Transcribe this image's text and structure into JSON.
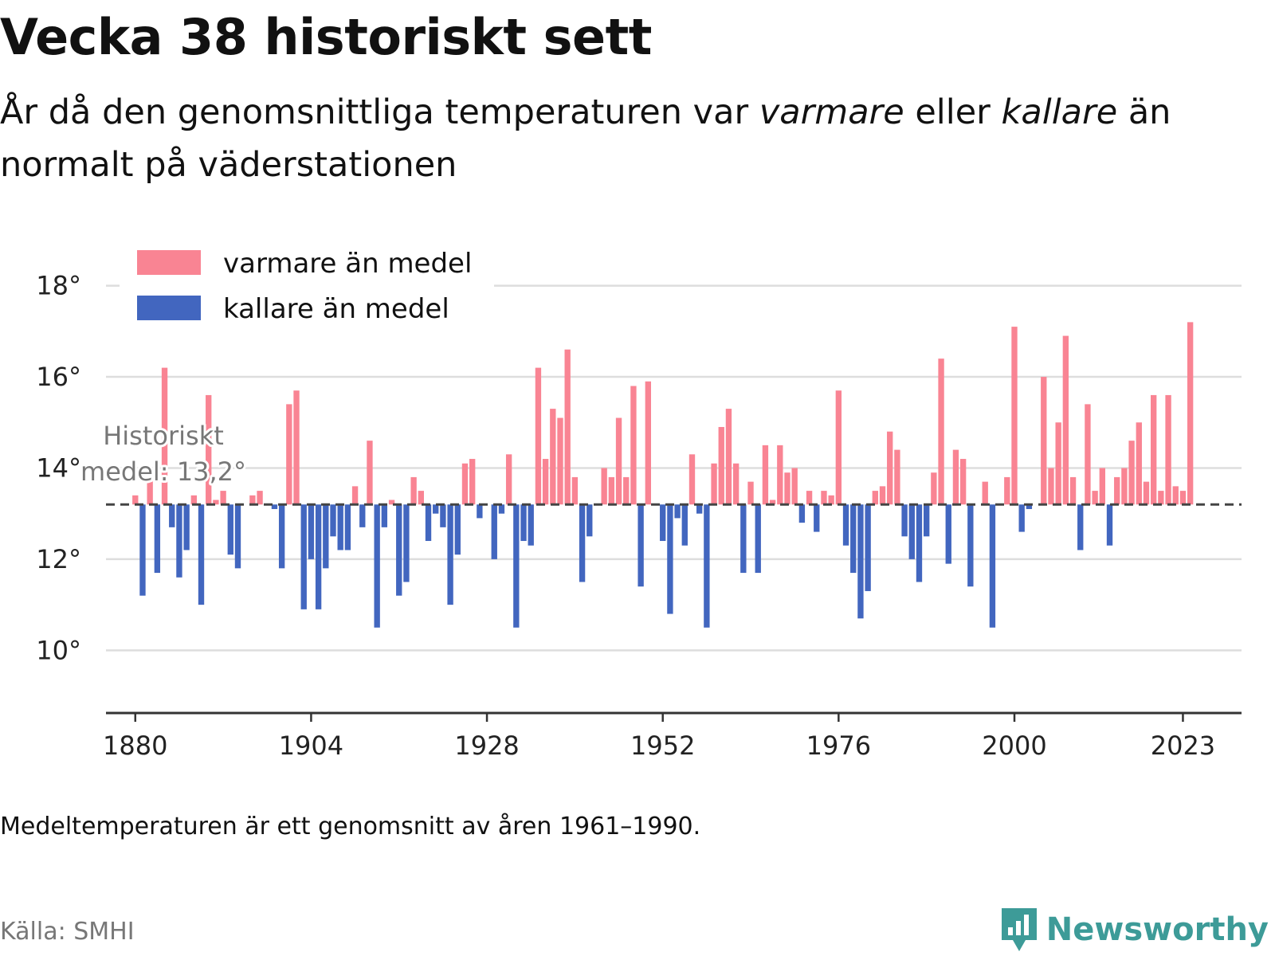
{
  "title": "Vecka 38 historiskt sett",
  "subtitle": {
    "part1": "År då den genomsnittliga temperaturen var ",
    "warm_word": "varmare",
    "part2": " eller ",
    "cold_word": "kallare",
    "part3": " än normalt på väderstationen"
  },
  "note": "Medeltemperaturen är ett genomsnitt av åren 1961–1990.",
  "source": "Källa: SMHI",
  "brand": {
    "name": "Newsworthy",
    "icon": "newsworthy-logo-icon"
  },
  "colors": {
    "warm": "#f98493",
    "cold": "#4266bf",
    "grid": "#dddddd",
    "mean_line": "#444444",
    "brand": "#3d9b98"
  },
  "chart_data": {
    "type": "bar",
    "baseline": 13.2,
    "mean_label_line1": "Historiskt",
    "mean_label_line2": "medel: 13,2°",
    "legend": [
      {
        "name": "varmare än medel",
        "color": "#f98493"
      },
      {
        "name": "kallare än medel",
        "color": "#4266bf"
      }
    ],
    "legend_position": "top-left",
    "ylim": [
      8.8,
      18.5
    ],
    "y_ticks": [
      10,
      12,
      14,
      16,
      18
    ],
    "y_tick_labels": [
      "10°",
      "12°",
      "14°",
      "16°",
      "18°"
    ],
    "xlim": [
      1876,
      2031
    ],
    "x_ticks": [
      1880,
      1904,
      1928,
      1952,
      1976,
      2000,
      2023
    ],
    "x_tick_labels": [
      "1880",
      "1904",
      "1928",
      "1952",
      "1976",
      "2000",
      "2023"
    ],
    "grid": true,
    "start_year": 1880,
    "values": [
      13.4,
      11.2,
      13.9,
      11.7,
      16.2,
      12.7,
      11.6,
      12.2,
      13.4,
      11.0,
      15.6,
      13.3,
      13.5,
      12.1,
      11.8,
      13.2,
      13.4,
      13.5,
      13.2,
      13.1,
      11.8,
      15.4,
      15.7,
      10.9,
      12.0,
      10.9,
      11.8,
      12.5,
      12.2,
      12.2,
      13.6,
      12.7,
      14.6,
      10.5,
      12.7,
      13.3,
      11.2,
      11.5,
      13.8,
      13.5,
      12.4,
      13.0,
      12.7,
      11.0,
      12.1,
      14.1,
      14.2,
      12.9,
      13.2,
      12.0,
      13.0,
      14.3,
      10.5,
      12.4,
      12.3,
      16.2,
      14.2,
      15.3,
      15.1,
      16.6,
      13.8,
      11.5,
      12.5,
      13.2,
      14.0,
      13.8,
      15.1,
      13.8,
      15.8,
      11.4,
      15.9,
      13.2,
      12.4,
      10.8,
      12.9,
      12.3,
      14.3,
      13.0,
      10.5,
      14.1,
      14.9,
      15.3,
      14.1,
      11.7,
      13.7,
      11.7,
      14.5,
      13.3,
      14.5,
      13.9,
      14.0,
      12.8,
      13.5,
      12.6,
      13.5,
      13.4,
      15.7,
      12.3,
      11.7,
      10.7,
      11.3,
      13.5,
      13.6,
      14.8,
      14.4,
      12.5,
      12.0,
      11.5,
      12.5,
      13.9,
      16.4,
      11.9,
      14.4,
      14.2,
      11.4,
      13.2,
      13.7,
      10.5,
      13.2,
      13.8,
      17.1,
      12.6,
      13.1,
      13.2,
      16.0,
      14.0,
      15.0,
      16.9,
      13.8,
      12.2,
      15.4,
      13.5,
      14.0,
      12.3,
      13.8,
      14.0,
      14.6,
      15.0,
      13.7,
      15.6,
      13.5,
      15.6,
      13.6,
      13.5,
      17.2
    ]
  }
}
